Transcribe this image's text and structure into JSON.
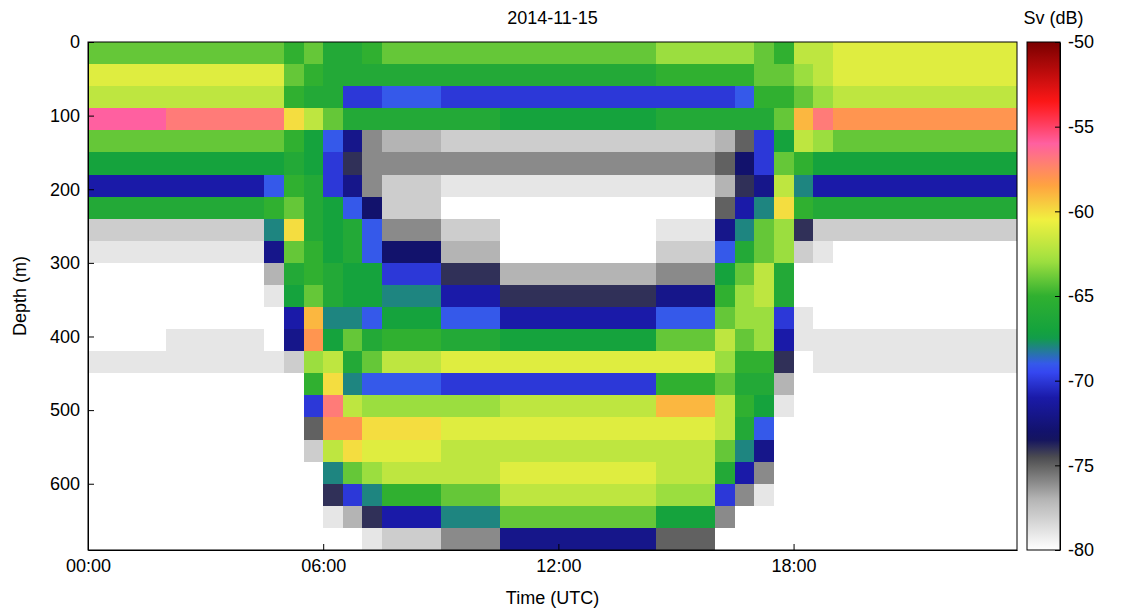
{
  "chart_data": {
    "type": "heatmap",
    "title": "2014-11-15",
    "x_label": "Time (UTC)",
    "y_label": "Depth (m)",
    "xlim": [
      0,
      23.7
    ],
    "xticks": [
      {
        "value": 0,
        "label": "00:00"
      },
      {
        "value": 6,
        "label": "06:00"
      },
      {
        "value": 12,
        "label": "12:00"
      },
      {
        "value": 18,
        "label": "18:00"
      }
    ],
    "ylim": [
      0,
      690
    ],
    "yticks": [
      0,
      100,
      200,
      300,
      400,
      500,
      600
    ],
    "x_bins": [
      0,
      0.5,
      1,
      1.5,
      2,
      2.5,
      3,
      3.5,
      4,
      4.5,
      5,
      5.5,
      6,
      6.5,
      7,
      7.5,
      8,
      8.5,
      9,
      9.5,
      10,
      10.5,
      11,
      11.5,
      12,
      12.5,
      13,
      13.5,
      14,
      14.5,
      15,
      15.5,
      16,
      16.5,
      17,
      17.5,
      18,
      18.5,
      19,
      19.5,
      20,
      20.5,
      21,
      21.5,
      22,
      22.5,
      23,
      23.5,
      24
    ],
    "y_bins": [
      0,
      30,
      60,
      90,
      120,
      150,
      180,
      210,
      240,
      270,
      300,
      330,
      360,
      390,
      420,
      450,
      480,
      510,
      540,
      570,
      600,
      630,
      660,
      690
    ],
    "values": [
      [
        -64,
        -61,
        -62,
        -56,
        -64,
        -67,
        -71,
        -66,
        -78,
        -79,
        -80,
        -80,
        -80,
        -80,
        -79,
        -80,
        -80,
        -80,
        -80,
        -80,
        -80,
        -80,
        -80
      ],
      [
        -64,
        -61,
        -62,
        -56,
        -64,
        -67,
        -71,
        -66,
        -78,
        -79,
        -80,
        -80,
        -80,
        -80,
        -79,
        -80,
        -80,
        -80,
        -80,
        -80,
        -80,
        -80,
        -80
      ],
      [
        -64,
        -61,
        -62,
        -56,
        -64,
        -67,
        -71,
        -66,
        -78,
        -79,
        -80,
        -80,
        -80,
        -80,
        -79,
        -80,
        -80,
        -80,
        -80,
        -80,
        -80,
        -80,
        -80
      ],
      [
        -64,
        -61,
        -62,
        -56,
        -64,
        -67,
        -71,
        -66,
        -78,
        -79,
        -80,
        -80,
        -80,
        -80,
        -79,
        -80,
        -80,
        -80,
        -80,
        -80,
        -80,
        -80,
        -80
      ],
      [
        -64,
        -61,
        -62,
        -57,
        -64,
        -67,
        -71,
        -66,
        -78,
        -79,
        -80,
        -80,
        -80,
        -79,
        -79,
        -80,
        -80,
        -80,
        -80,
        -80,
        -80,
        -80,
        -80
      ],
      [
        -64,
        -61,
        -62,
        -57,
        -64,
        -67,
        -71,
        -66,
        -78,
        -79,
        -80,
        -80,
        -80,
        -79,
        -79,
        -80,
        -80,
        -80,
        -80,
        -80,
        -80,
        -80,
        -80
      ],
      [
        -64,
        -61,
        -62,
        -57,
        -64,
        -67,
        -71,
        -66,
        -78,
        -79,
        -80,
        -80,
        -80,
        -79,
        -79,
        -80,
        -80,
        -80,
        -80,
        -80,
        -80,
        -80,
        -80
      ],
      [
        -64,
        -61,
        -62,
        -57,
        -64,
        -67,
        -71,
        -66,
        -78,
        -79,
        -80,
        -80,
        -80,
        -79,
        -79,
        -80,
        -80,
        -80,
        -80,
        -80,
        -80,
        -80,
        -80
      ],
      [
        -64,
        -61,
        -62,
        -57,
        -64,
        -67,
        -71,
        -66,
        -78,
        -79,
        -80,
        -80,
        -80,
        -79,
        -79,
        -80,
        -80,
        -80,
        -80,
        -80,
        -80,
        -80,
        -80
      ],
      [
        -64,
        -61,
        -62,
        -57,
        -64,
        -67,
        -69,
        -65,
        -68,
        -72,
        -77,
        -79,
        -80,
        -80,
        -79,
        -80,
        -80,
        -80,
        -80,
        -80,
        -80,
        -80,
        -80
      ],
      [
        -65,
        -64,
        -65,
        -60,
        -65,
        -66,
        -65,
        -64,
        -60,
        -64,
        -66,
        -67,
        -71,
        -72,
        -78,
        -80,
        -80,
        -80,
        -80,
        -80,
        -80,
        -80,
        -80
      ],
      [
        -64,
        -65,
        -66,
        -62,
        -67,
        -67,
        -66,
        -66,
        -66,
        -65,
        -65,
        -64,
        -59,
        -58,
        -63,
        -65,
        -70,
        -75,
        -78,
        -80,
        -80,
        -80,
        -80
      ],
      [
        -66,
        -66,
        -66,
        -64,
        -69,
        -70,
        -70,
        -67,
        -67,
        -67,
        -66,
        -66,
        -68,
        -67,
        -62,
        -60,
        -57,
        -58,
        -62,
        -68,
        -74,
        -79,
        -80
      ],
      [
        -66,
        -66,
        -70,
        -66,
        -72,
        -74,
        -72,
        -69,
        -66,
        -66,
        -67,
        -67,
        -68,
        -64,
        -66,
        -68,
        -62,
        -58,
        -60,
        -64,
        -70,
        -77,
        -80
      ],
      [
        -65,
        -66,
        -70,
        -66,
        -76,
        -76,
        -76,
        -73,
        -69,
        -69,
        -67,
        -67,
        -69,
        -66,
        -64,
        -69,
        -63,
        -60,
        -61,
        -63,
        -68,
        -74,
        -79
      ],
      [
        -64,
        -66,
        -69,
        -66,
        -77,
        -76,
        -78,
        -78,
        -76,
        -73,
        -70,
        -68,
        -67,
        -65,
        -62,
        -69,
        -63,
        -60,
        -61,
        -62,
        -65,
        -71,
        -78
      ],
      [
        -64,
        -66,
        -69,
        -66,
        -77,
        -76,
        -78,
        -78,
        -76,
        -73,
        -70,
        -68,
        -67,
        -65,
        -62,
        -69,
        -63,
        -60,
        -61,
        -62,
        -65,
        -71,
        -78
      ],
      [
        -64,
        -66,
        -69,
        -66,
        -77,
        -76,
        -78,
        -78,
        -76,
        -73,
        -70,
        -68,
        -67,
        -65,
        -62,
        -69,
        -63,
        -60,
        -61,
        -62,
        -65,
        -71,
        -78
      ],
      [
        -64,
        -66,
        -70,
        -66,
        -78,
        -76,
        -79,
        -80,
        -78,
        -77,
        -74,
        -71,
        -69,
        -66,
        -61,
        -70,
        -63,
        -61,
        -62,
        -62,
        -64,
        -68,
        -76
      ],
      [
        -64,
        -66,
        -70,
        -66,
        -78,
        -76,
        -79,
        -80,
        -78,
        -77,
        -74,
        -71,
        -69,
        -66,
        -61,
        -70,
        -63,
        -61,
        -62,
        -62,
        -64,
        -68,
        -76
      ],
      [
        -64,
        -66,
        -70,
        -66,
        -78,
        -76,
        -79,
        -80,
        -78,
        -77,
        -74,
        -71,
        -69,
        -66,
        -61,
        -70,
        -63,
        -61,
        -62,
        -62,
        -64,
        -68,
        -76
      ],
      [
        -64,
        -66,
        -70,
        -67,
        -78,
        -76,
        -79,
        -80,
        -80,
        -80,
        -77,
        -74,
        -71,
        -67,
        -61,
        -70,
        -62,
        -61,
        -62,
        -61,
        -62,
        -64,
        -72
      ],
      [
        -64,
        -66,
        -70,
        -67,
        -78,
        -76,
        -79,
        -80,
        -80,
        -80,
        -77,
        -74,
        -71,
        -67,
        -61,
        -70,
        -62,
        -61,
        -62,
        -61,
        -62,
        -64,
        -72
      ],
      [
        -64,
        -66,
        -70,
        -67,
        -78,
        -76,
        -79,
        -80,
        -80,
        -80,
        -77,
        -74,
        -71,
        -67,
        -61,
        -70,
        -62,
        -61,
        -62,
        -61,
        -62,
        -64,
        -72
      ],
      [
        -64,
        -66,
        -70,
        -67,
        -78,
        -76,
        -79,
        -80,
        -80,
        -80,
        -77,
        -74,
        -71,
        -67,
        -61,
        -70,
        -62,
        -61,
        -62,
        -61,
        -62,
        -64,
        -72
      ],
      [
        -64,
        -66,
        -70,
        -67,
        -78,
        -76,
        -79,
        -80,
        -80,
        -80,
        -77,
        -74,
        -71,
        -67,
        -61,
        -70,
        -62,
        -61,
        -62,
        -61,
        -62,
        -64,
        -72
      ],
      [
        -64,
        -66,
        -70,
        -67,
        -78,
        -76,
        -79,
        -80,
        -80,
        -80,
        -77,
        -74,
        -71,
        -67,
        -61,
        -70,
        -62,
        -61,
        -62,
        -61,
        -62,
        -64,
        -72
      ],
      [
        -64,
        -66,
        -70,
        -67,
        -78,
        -76,
        -79,
        -80,
        -80,
        -80,
        -77,
        -74,
        -71,
        -67,
        -61,
        -70,
        -62,
        -61,
        -62,
        -61,
        -62,
        -64,
        -72
      ],
      [
        -64,
        -66,
        -70,
        -67,
        -78,
        -76,
        -79,
        -80,
        -80,
        -80,
        -77,
        -74,
        -71,
        -67,
        -61,
        -70,
        -62,
        -61,
        -62,
        -61,
        -62,
        -64,
        -72
      ],
      [
        -63,
        -65,
        -70,
        -66,
        -78,
        -76,
        -79,
        -80,
        -79,
        -78,
        -76,
        -72,
        -69,
        -64,
        -61,
        -65,
        -59,
        -61,
        -62,
        -62,
        -63,
        -67,
        -75
      ],
      [
        -63,
        -65,
        -70,
        -66,
        -78,
        -76,
        -79,
        -80,
        -79,
        -78,
        -76,
        -72,
        -69,
        -64,
        -61,
        -65,
        -59,
        -61,
        -62,
        -62,
        -63,
        -67,
        -75
      ],
      [
        -63,
        -65,
        -70,
        -66,
        -78,
        -76,
        -79,
        -80,
        -79,
        -78,
        -76,
        -72,
        -69,
        -64,
        -61,
        -65,
        -59,
        -61,
        -62,
        -62,
        -63,
        -67,
        -75
      ],
      [
        -63,
        -65,
        -70,
        -66,
        -77,
        -75,
        -77,
        -75,
        -72,
        -69,
        -67,
        -65,
        -64,
        -62,
        -63,
        -64,
        -62,
        -62,
        -64,
        -66,
        -70,
        -76,
        -80
      ],
      [
        -63,
        -65,
        -69,
        -66,
        -75,
        -73,
        -74,
        -71,
        -68,
        -66,
        -64,
        -63,
        -63,
        -64,
        -65,
        -66,
        -65,
        -66,
        -68,
        -71,
        -76,
        -80,
        -80
      ],
      [
        -64,
        -64,
        -65,
        -66,
        -70,
        -70,
        -72,
        -68,
        -64,
        -64,
        -62,
        -62,
        -63,
        -63,
        -65,
        -66,
        -67,
        -69,
        -72,
        -76,
        -79,
        -80,
        -80
      ],
      [
        -65,
        -64,
        -65,
        -64,
        -67,
        -64,
        -62,
        -60,
        -63,
        -63,
        -66,
        -66,
        -70,
        -71,
        -74,
        -77,
        -79,
        -80,
        -80,
        -80,
        -80,
        -80,
        -80
      ],
      [
        -62,
        -63,
        -64,
        -59,
        -62,
        -65,
        -68,
        -65,
        -74,
        -78,
        -80,
        -80,
        -79,
        -79,
        -80,
        -80,
        -80,
        -80,
        -80,
        -80,
        -80,
        -80,
        -80
      ],
      [
        -62,
        -62,
        -63,
        -57,
        -63,
        -67,
        -71,
        -66,
        -78,
        -79,
        -80,
        -80,
        -80,
        -79,
        -79,
        -80,
        -80,
        -80,
        -80,
        -80,
        -80,
        -80,
        -80
      ],
      [
        -61,
        -61,
        -62,
        -58,
        -64,
        -67,
        -71,
        -66,
        -78,
        -80,
        -80,
        -80,
        -80,
        -79,
        -79,
        -80,
        -80,
        -80,
        -80,
        -80,
        -80,
        -80,
        -80
      ],
      [
        -61,
        -61,
        -62,
        -58,
        -64,
        -67,
        -71,
        -66,
        -78,
        -80,
        -80,
        -80,
        -80,
        -79,
        -79,
        -80,
        -80,
        -80,
        -80,
        -80,
        -80,
        -80,
        -80
      ],
      [
        -61,
        -61,
        -62,
        -58,
        -64,
        -67,
        -71,
        -66,
        -78,
        -80,
        -80,
        -80,
        -80,
        -79,
        -79,
        -80,
        -80,
        -80,
        -80,
        -80,
        -80,
        -80,
        -80
      ],
      [
        -61,
        -61,
        -62,
        -58,
        -64,
        -67,
        -71,
        -66,
        -78,
        -80,
        -80,
        -80,
        -80,
        -79,
        -79,
        -80,
        -80,
        -80,
        -80,
        -80,
        -80,
        -80,
        -80
      ],
      [
        -61,
        -61,
        -62,
        -58,
        -64,
        -67,
        -71,
        -66,
        -78,
        -80,
        -80,
        -80,
        -80,
        -79,
        -79,
        -80,
        -80,
        -80,
        -80,
        -80,
        -80,
        -80,
        -80
      ],
      [
        -61,
        -61,
        -62,
        -58,
        -64,
        -67,
        -71,
        -66,
        -78,
        -80,
        -80,
        -80,
        -80,
        -79,
        -79,
        -80,
        -80,
        -80,
        -80,
        -80,
        -80,
        -80,
        -80
      ],
      [
        -61,
        -61,
        -62,
        -58,
        -64,
        -67,
        -71,
        -66,
        -78,
        -80,
        -80,
        -80,
        -80,
        -79,
        -79,
        -80,
        -80,
        -80,
        -80,
        -80,
        -80,
        -80,
        -80
      ],
      [
        -61,
        -61,
        -62,
        -58,
        -64,
        -67,
        -71,
        -66,
        -78,
        -80,
        -80,
        -80,
        -80,
        -79,
        -79,
        -80,
        -80,
        -80,
        -80,
        -80,
        -80,
        -80,
        -80
      ],
      [
        -61,
        -61,
        -62,
        -58,
        -64,
        -67,
        -71,
        -66,
        -78,
        -80,
        -80,
        -80,
        -80,
        -79,
        -79,
        -80,
        -80,
        -80,
        -80,
        -80,
        -80,
        -80,
        -80
      ],
      [
        -61,
        -61,
        -62,
        -58,
        -64,
        -67,
        -71,
        -66,
        -78,
        -80,
        -80,
        -80,
        -80,
        -79,
        -79,
        -80,
        -80,
        -80,
        -80,
        -80,
        -80,
        -80,
        -80
      ]
    ],
    "colorbar": {
      "label": "Sv (dB)",
      "range": [
        -80,
        -50
      ],
      "ticks": [
        -80,
        -75,
        -70,
        -65,
        -60,
        -55,
        -50
      ]
    }
  }
}
